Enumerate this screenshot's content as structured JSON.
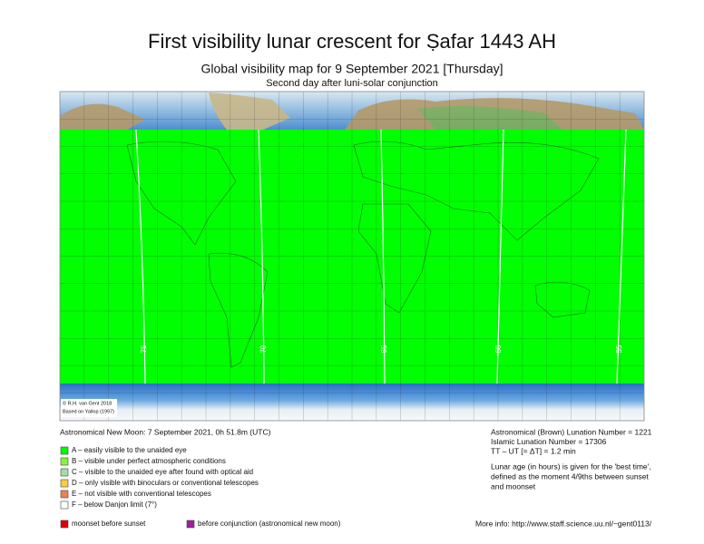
{
  "header": {
    "title": "First visibility lunar crescent for Ṣafar 1443 AH",
    "subtitle": "Global visibility map for 9 September 2021 [Thursday]",
    "note": "Second day after luni-solar conjunction"
  },
  "map": {
    "credits": [
      "© R.H. van Gent 2018",
      "Based on Yallop (1997)"
    ],
    "contour_labels": [
      "75",
      "70",
      "65",
      "60",
      "55"
    ]
  },
  "left": {
    "new_moon": "Astronomical New Moon: 7 September 2021, 0h 51.8m (UTC)",
    "legend": [
      {
        "label": "A – easily visible to the unaided eye",
        "color": "#00ff00"
      },
      {
        "label": "B – visible under perfect atmospheric conditions",
        "color": "#8cf23c"
      },
      {
        "label": "C – visible to the unaided eye after found with optical aid",
        "color": "#9fe0a8"
      },
      {
        "label": "D – only visible with binoculars or conventional telescopes",
        "color": "#f4d03f"
      },
      {
        "label": "E – not visible with conventional telescopes",
        "color": "#f08050"
      },
      {
        "label": "F – below Danjon limit (7°)",
        "color": "#ffffff"
      }
    ],
    "extra": [
      {
        "label": "moonset before sunset",
        "color": "#e00000"
      },
      {
        "label": "before conjunction (astronomical new moon)",
        "color": "#a020a0"
      }
    ]
  },
  "right": {
    "lines": [
      "Astronomical (Brown) Lunation Number = 1221",
      "Islamic Lunation Number = 17306",
      "TT – UT [= ΔT] = 1.2 min"
    ],
    "paragraph": [
      "Lunar age (in hours) is given for the 'best time',",
      "defined as the moment 4/9ths between sunset",
      "and moonset"
    ],
    "more_info": "More info: http://www.staff.science.uu.nl/~gent0113/"
  }
}
